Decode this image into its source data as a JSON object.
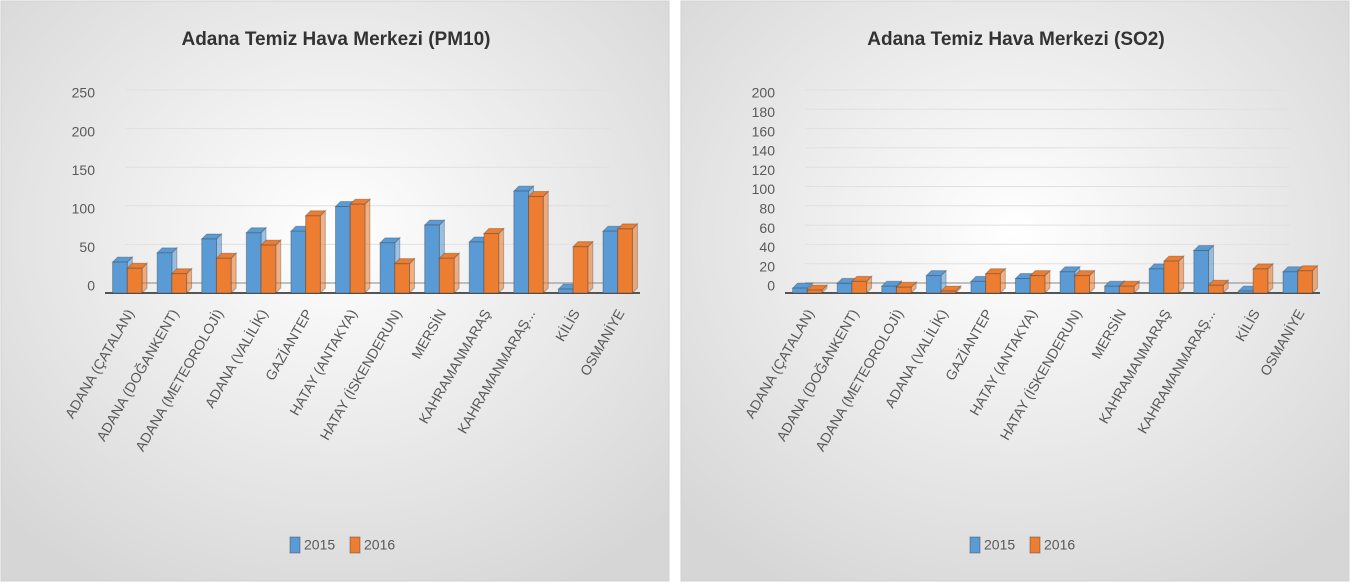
{
  "chart_data": [
    {
      "type": "bar",
      "title": "Adana Temiz Hava Merkezi (PM10)",
      "categories": [
        "ADANA (ÇATALAN)",
        "ADANA (DOĞANKENT)",
        "ADANA (METEOROLOJİ)",
        "ADANA (VALİLİK)",
        "GAZİANTEP",
        "HATAY (ANTAKYA)",
        "HATAY (İSKENDERUN)",
        "MERSİN",
        "KAHRAMANMARAŞ",
        "KAHRAMANMARAŞ...",
        "KİLİS",
        "OSMANİYE"
      ],
      "series": [
        {
          "name": "2015",
          "color": "#5b9bd5",
          "values": [
            40,
            52,
            70,
            78,
            80,
            112,
            65,
            88,
            66,
            132,
            5,
            80
          ]
        },
        {
          "name": "2016",
          "color": "#ed7d31",
          "values": [
            32,
            25,
            45,
            62,
            100,
            115,
            38,
            45,
            77,
            125,
            60,
            83
          ]
        }
      ],
      "ylim": [
        0,
        250
      ],
      "yticks": [
        0,
        50,
        100,
        150,
        200,
        250
      ],
      "grid": true,
      "legend": "bottom"
    },
    {
      "type": "bar",
      "title": "Adana Temiz Hava Merkezi (SO2)",
      "categories": [
        "ADANA (ÇATALAN)",
        "ADANA (DOĞANKENT)",
        "ADANA (METEOROLOJİ)",
        "ADANA (VALİLİK)",
        "GAZİANTEP",
        "HATAY (ANTAKYA)",
        "HATAY (İSKENDERUN)",
        "MERSİN",
        "KAHRAMANMARAŞ",
        "KAHRAMANMARAŞ...",
        "KİLİS",
        "OSMANİYE"
      ],
      "series": [
        {
          "name": "2015",
          "color": "#5b9bd5",
          "values": [
            5,
            10,
            7,
            18,
            12,
            15,
            22,
            7,
            25,
            44,
            2,
            22
          ]
        },
        {
          "name": "2016",
          "color": "#ed7d31",
          "values": [
            3,
            12,
            6,
            2,
            20,
            18,
            18,
            7,
            33,
            8,
            25,
            23
          ]
        }
      ],
      "ylim": [
        0,
        200
      ],
      "yticks": [
        0,
        20,
        40,
        60,
        80,
        100,
        120,
        140,
        160,
        180,
        200
      ],
      "grid": true,
      "legend": "bottom"
    }
  ]
}
